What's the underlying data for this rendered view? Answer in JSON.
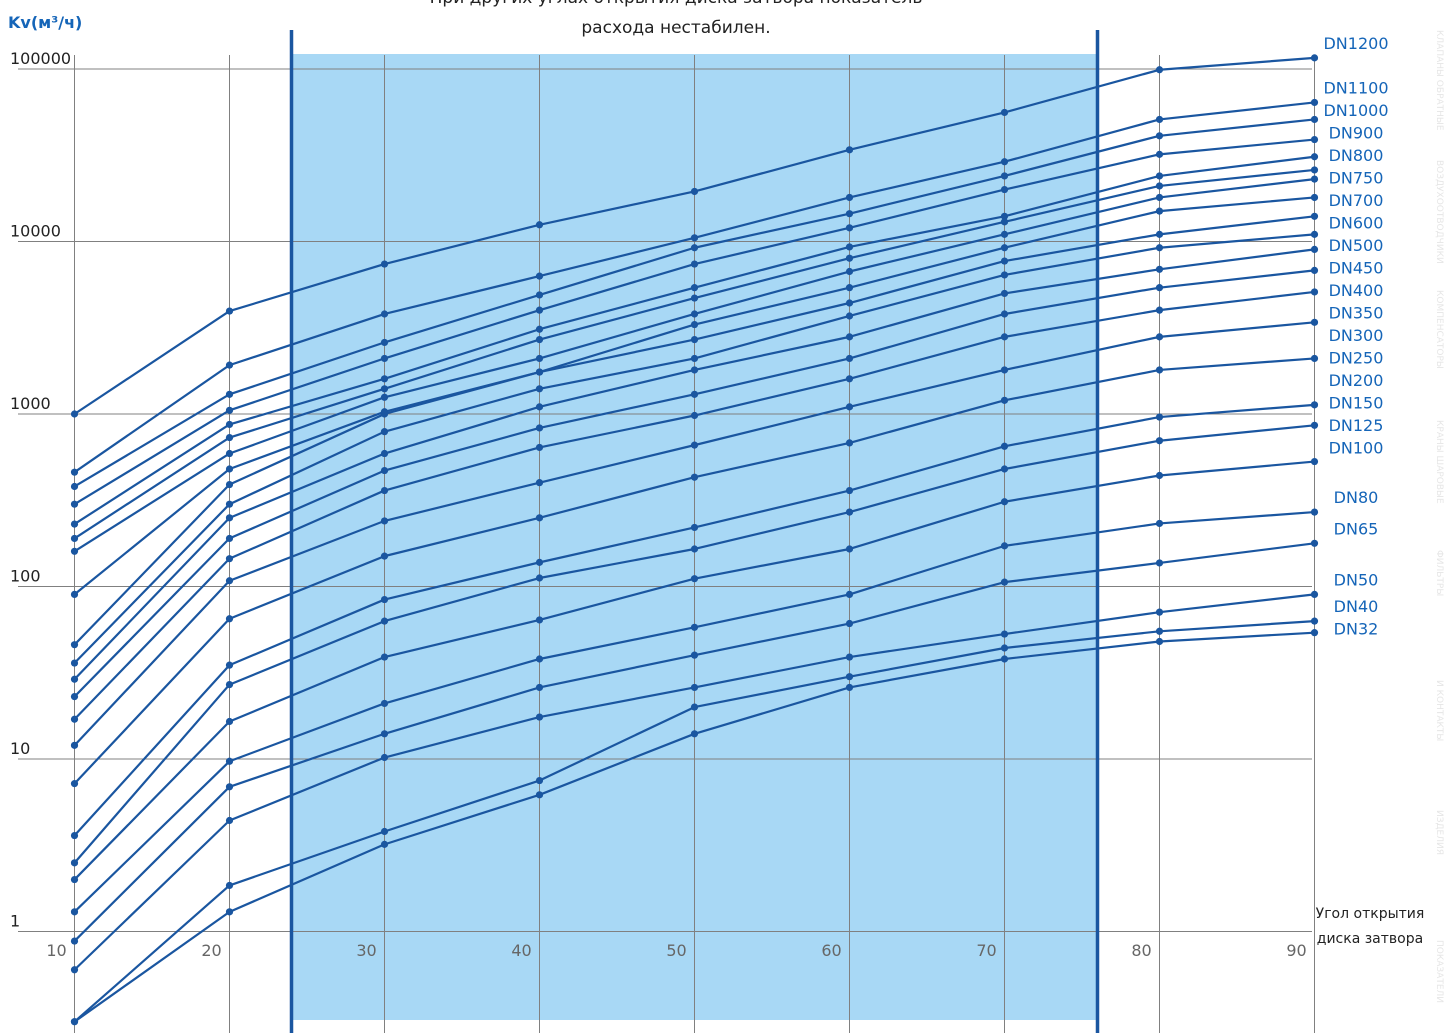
{
  "colors": {
    "line": "#1a56a0",
    "point": "#1a56a0",
    "zone": "#a8d8f5",
    "zone_border": "#1a56a0",
    "grid": "#808080",
    "label": "#1565b8"
  },
  "note": {
    "line1": "При других углах открытия диска затвора показатель",
    "line2": "расхода нестабилен."
  },
  "side_tabs": [
    "КЛАПАНЫ ОБРАТНЫЕ",
    "ВОЗДУХООТВОДЧИКИ",
    "КОМПЕНСАТОРЫ",
    "КРАНЫ ШАРОВЫЕ",
    "ФИЛЬТРЫ",
    "И КОНТАКТЫ",
    "ИЗДЕЛИЯ",
    "ПОКАЗАТЕЛИ"
  ],
  "chart_data": {
    "type": "line",
    "title": "",
    "ylabel": "Kv(м³/ч)",
    "xlabel": "Угол открытия диска затвора",
    "y_scale": "log",
    "ylim": [
      0.25,
      130000
    ],
    "xlim": [
      8.5,
      91.5
    ],
    "x_ticks": [
      10,
      20,
      30,
      40,
      50,
      60,
      70,
      80,
      90
    ],
    "y_ticks": [
      1,
      10,
      100,
      1000,
      10000,
      100000
    ],
    "y_tick_labels": [
      "1",
      "10",
      "100",
      "1000",
      "10000",
      "100000"
    ],
    "grid": true,
    "stable_zone": [
      24,
      76
    ],
    "x": [
      10,
      20,
      30,
      40,
      50,
      60,
      70,
      80,
      90
    ],
    "series": [
      {
        "name": "DN1200",
        "values": [
          1000,
          3950,
          7400,
          12500,
          19500,
          34000,
          56000,
          99000,
          116000
        ]
      },
      {
        "name": "DN1100",
        "values": [
          460,
          1920,
          3800,
          6300,
          10500,
          18000,
          29000,
          51000,
          64000
        ]
      },
      {
        "name": "DN1000",
        "values": [
          380,
          1300,
          2600,
          4900,
          9200,
          14500,
          24000,
          41000,
          51000
        ]
      },
      {
        "name": "DN900",
        "values": [
          300,
          1050,
          2100,
          4000,
          7400,
          12000,
          20000,
          32000,
          39000
        ]
      },
      {
        "name": "DN800",
        "values": [
          230,
          870,
          1600,
          3100,
          5400,
          9300,
          14000,
          24000,
          31000
        ]
      },
      {
        "name": "DN750",
        "values": [
          190,
          730,
          1400,
          2700,
          4700,
          8000,
          13000,
          21000,
          26000
        ]
      },
      {
        "name": "DN700",
        "values": [
          160,
          590,
          1250,
          2100,
          3800,
          6700,
          11000,
          18000,
          23000
        ]
      },
      {
        "name": "DN600",
        "values": [
          90,
          480,
          1030,
          1750,
          3300,
          5400,
          9200,
          15000,
          18000
        ]
      },
      {
        "name": "DN500",
        "values": [
          46,
          390,
          1000,
          1750,
          2700,
          4400,
          7700,
          11000,
          14000
        ]
      },
      {
        "name": "DN450",
        "values": [
          36,
          300,
          790,
          1400,
          2100,
          3700,
          6400,
          9200,
          11000
        ]
      },
      {
        "name": "DN400",
        "values": [
          29,
          250,
          590,
          1100,
          1800,
          2800,
          5000,
          6900,
          9000
        ]
      },
      {
        "name": "DN350",
        "values": [
          23,
          190,
          470,
          830,
          1300,
          2100,
          3800,
          5400,
          6800
        ]
      },
      {
        "name": "DN300",
        "values": [
          17,
          145,
          360,
          640,
          980,
          1600,
          2800,
          4000,
          5100
        ]
      },
      {
        "name": "DN250",
        "values": [
          12,
          108,
          240,
          400,
          660,
          1100,
          1800,
          2800,
          3400
        ]
      },
      {
        "name": "DN200",
        "values": [
          7.2,
          65,
          150,
          250,
          430,
          680,
          1200,
          1800,
          2100
        ]
      },
      {
        "name": "DN150",
        "values": [
          3.6,
          35,
          84,
          138,
          220,
          360,
          650,
          960,
          1130
        ]
      },
      {
        "name": "DN125",
        "values": [
          2.5,
          27,
          63,
          112,
          165,
          270,
          480,
          700,
          860
        ]
      },
      {
        "name": "DN100",
        "values": [
          2.0,
          16.5,
          39,
          64,
          111,
          165,
          310,
          440,
          530
        ]
      },
      {
        "name": "DN80",
        "values": [
          1.3,
          9.7,
          21,
          38,
          58,
          90,
          172,
          232,
          270
        ]
      },
      {
        "name": "DN65",
        "values": [
          0.88,
          6.9,
          14,
          26,
          40,
          61,
          106,
          137,
          178
        ]
      },
      {
        "name": "DN50",
        "values": [
          0.6,
          4.4,
          10.2,
          17.5,
          26,
          39,
          53,
          71,
          90
        ]
      },
      {
        "name": "DN40",
        "values": [
          0.3,
          1.85,
          3.8,
          7.5,
          20,
          30,
          44,
          55,
          63
        ]
      },
      {
        "name": "DN32",
        "values": [
          0.3,
          1.3,
          3.2,
          6.2,
          14,
          26,
          38,
          48,
          54
        ]
      }
    ]
  }
}
